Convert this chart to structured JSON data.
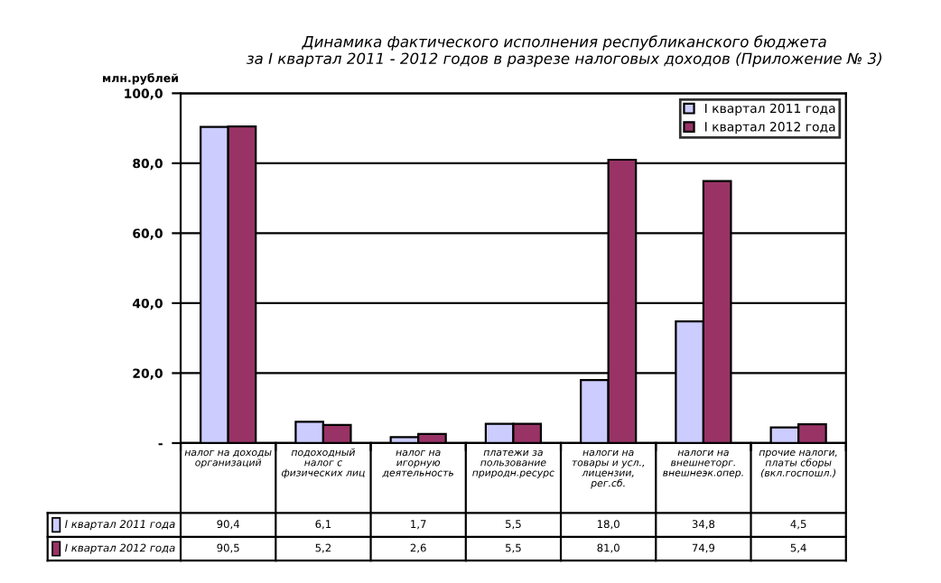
{
  "chart_data": {
    "type": "bar",
    "title": "Динамика фактического исполнения республиканского бюджета\nза I квартал 2011 - 2012 годов в разрезе налоговых доходов (Приложение № 3)",
    "ylabel": "млн.рублей",
    "categories": [
      "налог на доходы организаций",
      "подоходный налог с физических лиц",
      "налог на игорную деятельность",
      "платежи за пользование природн.ресурс",
      "налоги на товары и усл., лицензии, рег.сб.",
      "налоги на внешнеторг. внешнеэк.опер.",
      "прочие налоги, платы сборы (вкл.госпошл.)"
    ],
    "series": [
      {
        "name": "I квартал 2011 года",
        "color": "#ccccff",
        "values": [
          90.4,
          6.1,
          1.7,
          5.5,
          18.0,
          34.8,
          4.5
        ],
        "value_labels": [
          "90,4",
          "6,1",
          "1,7",
          "5,5",
          "18,0",
          "34,8",
          "4,5"
        ]
      },
      {
        "name": "I квартал 2012 года",
        "color": "#993366",
        "values": [
          90.5,
          5.2,
          2.6,
          5.5,
          81.0,
          74.9,
          5.4
        ],
        "value_labels": [
          "90,5",
          "5,2",
          "2,6",
          "5,5",
          "81,0",
          "74,9",
          "5,4"
        ]
      }
    ],
    "ylim": [
      0,
      100
    ],
    "yticks": [
      {
        "value": 0,
        "label": "-"
      },
      {
        "value": 20,
        "label": "20,0"
      },
      {
        "value": 40,
        "label": "40,0"
      },
      {
        "value": 60,
        "label": "60,0"
      },
      {
        "value": 80,
        "label": "80,0"
      },
      {
        "value": 100,
        "label": "100,0"
      }
    ],
    "grid": "y",
    "legend": "top right"
  }
}
